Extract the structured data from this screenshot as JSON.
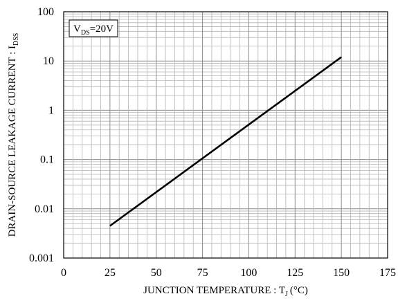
{
  "chart_data": {
    "type": "line",
    "xlabel": "JUNCTION TEMPERATURE : T",
    "xlabel_sub": "J",
    "xlabel_unit": "(°C)",
    "ylabel": "DRAIN-SOURCE LEAKAGE CURRENT : I",
    "ylabel_sub": "DSS",
    "y_scale": "log",
    "xlim": [
      0,
      175
    ],
    "ylim": [
      0.001,
      100
    ],
    "grid": true,
    "x_ticks": [
      0,
      25,
      50,
      75,
      100,
      125,
      150,
      175
    ],
    "x_tick_labels": [
      "0",
      "25",
      "50",
      "75",
      "100",
      "125",
      "150",
      "175"
    ],
    "y_ticks": [
      0.001,
      0.01,
      0.1,
      1,
      10,
      100
    ],
    "y_tick_labels": [
      "0.001",
      "0.01",
      "0.1",
      "1",
      "10",
      "100"
    ],
    "annotation": {
      "main": "V",
      "sub": "DS",
      "rest": "=20V"
    },
    "series": [
      {
        "x": [
          25,
          150
        ],
        "y": [
          0.0045,
          12
        ]
      }
    ],
    "colors": {
      "line": "#000000",
      "major_grid": "#8c8c8c",
      "minor_grid": "#b4b4b4",
      "frame": "#000000"
    }
  }
}
